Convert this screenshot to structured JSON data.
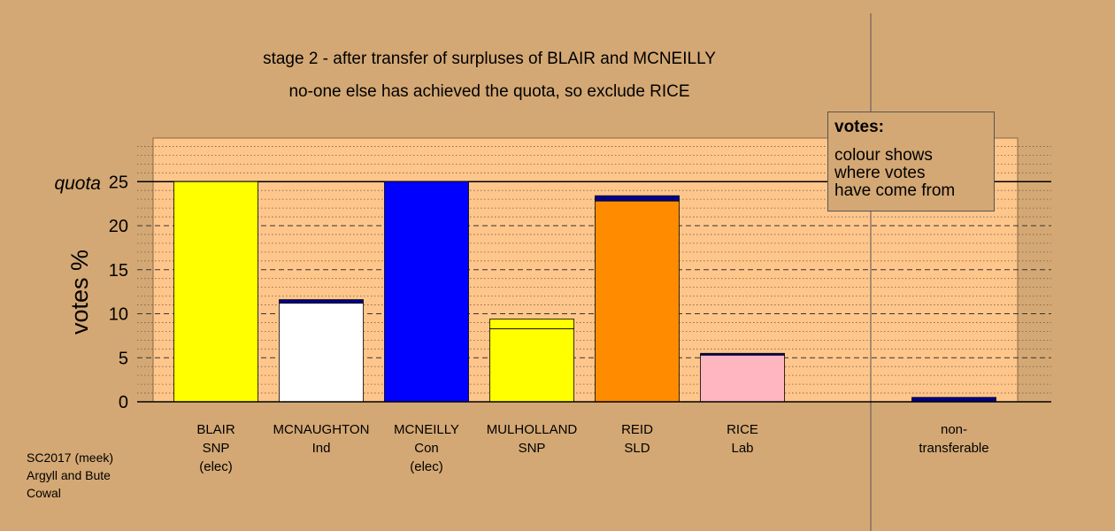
{
  "chart_data": {
    "type": "bar",
    "title": "stage 2 - after transfer of surpluses of BLAIR and MCNEILLY",
    "subtitle": "no-one else has achieved the quota, so exclude RICE",
    "ylabel": "votes %",
    "ylim": [
      0,
      30
    ],
    "yticks": [
      0,
      5,
      10,
      15,
      20,
      25
    ],
    "quota": 25,
    "quota_label": "quota",
    "grid": true,
    "candidates": [
      {
        "name": "BLAIR",
        "party": "SNP",
        "status": "(elec)",
        "base": 25.0,
        "base_color": "#ffff00",
        "transfer": 0,
        "transfer_color": "#00008b"
      },
      {
        "name": "MCNAUGHTON",
        "party": "Ind",
        "status": "",
        "base": 11.2,
        "base_color": "#ffffff",
        "transfer": 0.4,
        "transfer_color": "#00008b"
      },
      {
        "name": "MCNEILLY",
        "party": "Con",
        "status": "(elec)",
        "base": 25.0,
        "base_color": "#0000ff",
        "transfer": 0,
        "transfer_color": "#00008b"
      },
      {
        "name": "MULHOLLAND",
        "party": "SNP",
        "status": "",
        "base": 8.3,
        "base_color": "#ffff00",
        "transfer": 1.1,
        "transfer_color": "#ffff00"
      },
      {
        "name": "REID",
        "party": "SLD",
        "status": "",
        "base": 22.8,
        "base_color": "#ff8c00",
        "transfer": 0.6,
        "transfer_color": "#00008b"
      },
      {
        "name": "RICE",
        "party": "Lab",
        "status": "",
        "base": 5.3,
        "base_color": "#ffb6c1",
        "transfer": 0.2,
        "transfer_color": "#00008b"
      }
    ],
    "nontransferable": {
      "label_line1": "non-",
      "label_line2": "transferable",
      "value": 0.5,
      "color": "#00008b"
    }
  },
  "legend": {
    "title": "votes:",
    "lines": [
      "colour shows",
      "where votes",
      "have come from"
    ]
  },
  "footer": {
    "lines": [
      "SC2017 (meek)",
      "Argyll and Bute",
      "Cowal"
    ]
  },
  "colors": {
    "background": "#d4a874",
    "plot_area": "#ffc68c"
  }
}
